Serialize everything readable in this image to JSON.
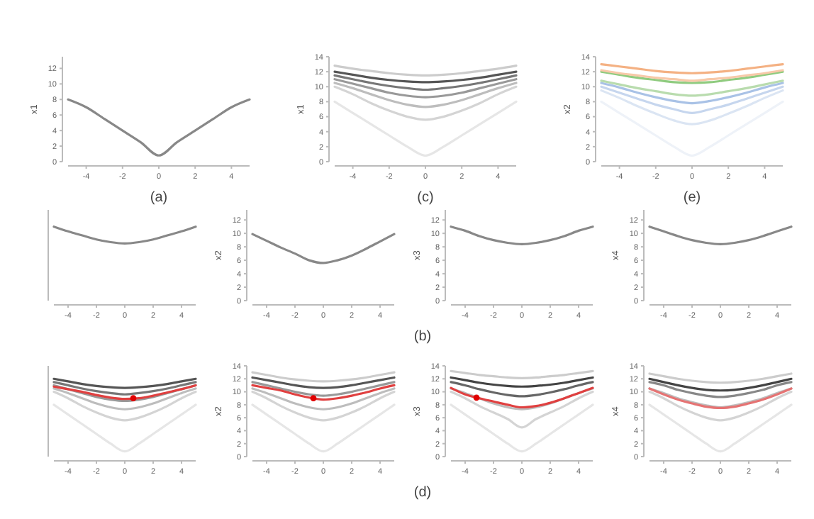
{
  "chart_data": [
    {
      "type": "line",
      "ylabel": "x1",
      "annotations": [
        "(a)"
      ],
      "x": [
        -5,
        -4,
        -3,
        -2,
        -1,
        0,
        1,
        2,
        3,
        4,
        5
      ],
      "xlim": [
        -5,
        5
      ],
      "xticks": [
        -4,
        -2,
        0,
        2,
        4
      ],
      "ylim": [
        0,
        13.5
      ],
      "yticks": [
        0,
        2,
        4,
        6,
        8,
        10,
        12
      ],
      "series": [
        {
          "color": "#888888",
          "values": [
            8,
            7,
            5.5,
            4,
            2.5,
            0.8,
            2.5,
            4,
            5.5,
            7,
            8
          ]
        }
      ]
    },
    {
      "type": "line",
      "ylabel": "x1",
      "annotations": [
        "(c)"
      ],
      "x": [
        -5,
        -4,
        -3,
        -2,
        -1,
        0,
        1,
        2,
        3,
        4,
        5
      ],
      "xlim": [
        -5,
        5
      ],
      "xticks": [
        -4,
        -2,
        0,
        2,
        4
      ],
      "ylim": [
        0,
        14
      ],
      "yticks": [
        0,
        2,
        4,
        6,
        8,
        10,
        12,
        14
      ],
      "series": [
        {
          "color": "#e6e6e6",
          "values": [
            8,
            6.5,
            5,
            3.5,
            2,
            0.8,
            2,
            3.5,
            5,
            6.5,
            8
          ]
        },
        {
          "color": "#d4d4d4",
          "values": [
            10,
            9,
            7.8,
            6.8,
            6,
            5.6,
            6,
            6.8,
            7.8,
            9,
            10
          ]
        },
        {
          "color": "#bdbdbd",
          "values": [
            10.5,
            9.8,
            9,
            8.2,
            7.6,
            7.3,
            7.6,
            8.2,
            9,
            9.8,
            10.5
          ]
        },
        {
          "color": "#999999",
          "values": [
            11,
            10.4,
            9.8,
            9.2,
            8.8,
            8.6,
            8.8,
            9.2,
            9.8,
            10.4,
            11
          ]
        },
        {
          "color": "#777777",
          "values": [
            11.5,
            11,
            10.5,
            10.1,
            9.8,
            9.6,
            9.8,
            10.1,
            10.5,
            11,
            11.5
          ]
        },
        {
          "color": "#555555",
          "values": [
            12,
            11.6,
            11.2,
            10.9,
            10.7,
            10.6,
            10.7,
            10.9,
            11.2,
            11.6,
            12
          ]
        },
        {
          "color": "#cccccc",
          "values": [
            12.8,
            12.4,
            12.1,
            11.8,
            11.6,
            11.5,
            11.6,
            11.8,
            12.1,
            12.4,
            12.8
          ]
        }
      ]
    },
    {
      "type": "line",
      "ylabel": "x2",
      "annotations": [
        "(e)"
      ],
      "x": [
        -5,
        -4,
        -3,
        -2,
        -1,
        0,
        1,
        2,
        3,
        4,
        5
      ],
      "xlim": [
        -5,
        5
      ],
      "xticks": [
        -4,
        -2,
        0,
        2,
        4
      ],
      "ylim": [
        0,
        14
      ],
      "yticks": [
        0,
        2,
        4,
        6,
        8,
        10,
        12,
        14
      ],
      "series": [
        {
          "color": "#eef2f8",
          "values": [
            8,
            6.5,
            5,
            3.5,
            2,
            0.8,
            2,
            3.5,
            5,
            6.5,
            8
          ]
        },
        {
          "color": "#dbe5f3",
          "values": [
            9.5,
            8.5,
            7.4,
            6.4,
            5.5,
            5,
            5.5,
            6.4,
            7.4,
            8.5,
            9.5
          ]
        },
        {
          "color": "#c6d6ee",
          "values": [
            10,
            9.2,
            8.4,
            7.6,
            7,
            6.5,
            7,
            7.6,
            8.4,
            9.2,
            10
          ]
        },
        {
          "color": "#a9c2e6",
          "values": [
            10.5,
            9.9,
            9.2,
            8.6,
            8.1,
            7.8,
            8.1,
            8.6,
            9.2,
            9.9,
            10.5
          ]
        },
        {
          "color": "#b9dcae",
          "values": [
            10.8,
            10.3,
            9.8,
            9.4,
            9,
            8.8,
            9,
            9.4,
            9.8,
            10.3,
            10.8
          ]
        },
        {
          "color": "#8fcb7f",
          "values": [
            12,
            11.6,
            11.2,
            10.9,
            10.6,
            10.5,
            10.6,
            10.9,
            11.2,
            11.6,
            12
          ]
        },
        {
          "color": "#f7c9a9",
          "values": [
            12.2,
            11.8,
            11.5,
            11.2,
            11,
            10.8,
            11,
            11.2,
            11.5,
            11.8,
            12.2
          ]
        },
        {
          "color": "#f4b183",
          "values": [
            13,
            12.7,
            12.4,
            12.1,
            11.9,
            11.8,
            11.9,
            12.1,
            12.4,
            12.7,
            13
          ]
        }
      ]
    },
    {
      "type": "line",
      "tick_labels": "x",
      "x": [
        -5,
        -4,
        -3,
        -2,
        -1,
        0,
        1,
        2,
        3,
        4,
        5
      ],
      "xlim": [
        -5,
        5
      ],
      "xticks": [
        -4,
        -2,
        0,
        2,
        4
      ],
      "ylim": [
        0,
        13.5
      ],
      "series": [
        {
          "color": "#888888",
          "values": [
            11,
            10.3,
            9.7,
            9.1,
            8.7,
            8.5,
            8.7,
            9.1,
            9.7,
            10.3,
            11
          ]
        }
      ]
    },
    {
      "type": "line",
      "ylabel": "x2",
      "annotations": [
        "(b)"
      ],
      "x": [
        -5,
        -4,
        -3,
        -2,
        -1,
        0,
        1,
        2,
        3,
        4,
        5
      ],
      "xlim": [
        -5,
        5
      ],
      "xticks": [
        -4,
        -2,
        0,
        2,
        4
      ],
      "ylim": [
        0,
        13.5
      ],
      "yticks": [
        0,
        2,
        4,
        6,
        8,
        10,
        12
      ],
      "series": [
        {
          "color": "#888888",
          "values": [
            9.9,
            8.9,
            7.9,
            7,
            6,
            5.6,
            6,
            6.7,
            7.7,
            8.8,
            9.9
          ]
        }
      ]
    },
    {
      "type": "line",
      "ylabel": "x3",
      "x": [
        -5,
        -4,
        -3,
        -2,
        -1,
        0,
        1,
        2,
        3,
        4,
        5
      ],
      "xlim": [
        -5,
        5
      ],
      "xticks": [
        -4,
        -2,
        0,
        2,
        4
      ],
      "ylim": [
        0,
        13.5
      ],
      "yticks": [
        0,
        2,
        4,
        6,
        8,
        10,
        12
      ],
      "series": [
        {
          "color": "#888888",
          "values": [
            11,
            10.4,
            9.6,
            9,
            8.6,
            8.4,
            8.6,
            9,
            9.6,
            10.4,
            11
          ]
        }
      ]
    },
    {
      "type": "line",
      "ylabel": "x4",
      "x": [
        -5,
        -4,
        -3,
        -2,
        -1,
        0,
        1,
        2,
        3,
        4,
        5
      ],
      "xlim": [
        -5,
        5
      ],
      "xticks": [
        -4,
        -2,
        0,
        2,
        4
      ],
      "ylim": [
        0,
        13.5
      ],
      "yticks": [
        0,
        2,
        4,
        6,
        8,
        10,
        12
      ],
      "series": [
        {
          "color": "#888888",
          "values": [
            11,
            10.3,
            9.6,
            9,
            8.6,
            8.4,
            8.6,
            9,
            9.6,
            10.3,
            11
          ]
        }
      ]
    },
    {
      "type": "line",
      "tick_labels": "x",
      "x": [
        -5,
        -4,
        -3,
        -2,
        -1,
        0,
        1,
        2,
        3,
        4,
        5
      ],
      "xlim": [
        -5,
        5
      ],
      "xticks": [
        -4,
        -2,
        0,
        2,
        4
      ],
      "ylim": [
        0,
        14
      ],
      "series": [
        {
          "color": "#e6e6e6",
          "values": [
            8,
            6.5,
            5,
            3.5,
            2,
            0.8,
            2,
            3.5,
            5,
            6.5,
            8
          ]
        },
        {
          "color": "#d4d4d4",
          "values": [
            10,
            9,
            7.8,
            6.8,
            6,
            5.6,
            6,
            6.8,
            7.8,
            9,
            10
          ]
        },
        {
          "color": "#bdbdbd",
          "values": [
            10.5,
            9.8,
            9,
            8.2,
            7.6,
            7.3,
            7.6,
            8.2,
            9,
            9.8,
            10.5
          ]
        },
        {
          "color": "#999999",
          "values": [
            11,
            10.4,
            9.8,
            9.2,
            8.8,
            8.6,
            8.8,
            9.2,
            9.8,
            10.4,
            11
          ]
        },
        {
          "color": "#777777",
          "values": [
            11.5,
            11,
            10.5,
            10.1,
            9.8,
            9.6,
            9.8,
            10.1,
            10.5,
            11,
            11.5
          ]
        },
        {
          "color": "#555555",
          "values": [
            12,
            11.6,
            11.2,
            10.9,
            10.7,
            10.6,
            10.7,
            10.9,
            11.2,
            11.6,
            12
          ]
        },
        {
          "color": "#e04040",
          "values": [
            10.8,
            10.4,
            10,
            9.5,
            9.1,
            8.9,
            9,
            9.4,
            9.9,
            10.4,
            11
          ]
        },
        {
          "type": "scatter",
          "color": "#e00000",
          "x": [
            0.6
          ],
          "values": [
            9
          ]
        }
      ]
    },
    {
      "type": "line",
      "ylabel": "x2",
      "annotations": [
        "(d)"
      ],
      "x": [
        -5,
        -4,
        -3,
        -2,
        -1,
        0,
        1,
        2,
        3,
        4,
        5
      ],
      "xlim": [
        -5,
        5
      ],
      "xticks": [
        -4,
        -2,
        0,
        2,
        4
      ],
      "ylim": [
        0,
        14
      ],
      "yticks": [
        0,
        2,
        4,
        6,
        8,
        10,
        12,
        14
      ],
      "series": [
        {
          "color": "#e6e6e6",
          "values": [
            8,
            6.5,
            5,
            3.5,
            2,
            0.8,
            2,
            3.5,
            5,
            6.5,
            8
          ]
        },
        {
          "color": "#d4d4d4",
          "values": [
            10,
            9,
            7.8,
            6.8,
            6,
            5.6,
            6,
            6.8,
            7.8,
            9,
            10
          ]
        },
        {
          "color": "#bdbdbd",
          "values": [
            10.5,
            9.8,
            9,
            8.2,
            7.6,
            7.3,
            7.6,
            8.2,
            9,
            9.8,
            10.5
          ]
        },
        {
          "color": "#999999",
          "values": [
            11.5,
            11,
            10.5,
            10,
            9.6,
            9.4,
            9.6,
            10,
            10.5,
            11,
            11.5
          ]
        },
        {
          "color": "#555555",
          "values": [
            12.2,
            11.8,
            11.4,
            11,
            10.7,
            10.6,
            10.7,
            11,
            11.4,
            11.8,
            12.2
          ]
        },
        {
          "color": "#cccccc",
          "values": [
            13,
            12.6,
            12.2,
            11.9,
            11.7,
            11.6,
            11.7,
            11.9,
            12.2,
            12.6,
            13
          ]
        },
        {
          "color": "#e04040",
          "values": [
            11,
            10.6,
            10.2,
            9.6,
            9.1,
            8.8,
            9,
            9.4,
            9.9,
            10.5,
            11
          ]
        },
        {
          "type": "scatter",
          "color": "#e00000",
          "x": [
            -0.7
          ],
          "values": [
            9
          ]
        }
      ]
    },
    {
      "type": "line",
      "ylabel": "x3",
      "x": [
        -5,
        -4,
        -3,
        -2,
        -1,
        0,
        1,
        2,
        3,
        4,
        5
      ],
      "xlim": [
        -5,
        5
      ],
      "xticks": [
        -4,
        -2,
        0,
        2,
        4
      ],
      "ylim": [
        0,
        14
      ],
      "yticks": [
        0,
        2,
        4,
        6,
        8,
        10,
        12,
        14
      ],
      "series": [
        {
          "color": "#e6e6e6",
          "values": [
            8,
            6.5,
            5,
            3.5,
            2,
            0.8,
            2,
            3.5,
            5,
            6.5,
            8
          ]
        },
        {
          "color": "#d4d4d4",
          "values": [
            10,
            9,
            7.8,
            6.8,
            5.8,
            4.5,
            5.8,
            6.8,
            7.8,
            9,
            10
          ]
        },
        {
          "color": "#bdbdbd",
          "values": [
            10.5,
            9.8,
            9,
            8.2,
            7.6,
            7.3,
            7.6,
            8.2,
            9,
            9.8,
            10.5
          ]
        },
        {
          "color": "#666666",
          "values": [
            11.5,
            11,
            10.4,
            9.9,
            9.5,
            9.3,
            9.5,
            9.9,
            10.4,
            11,
            11.5
          ]
        },
        {
          "color": "#444444",
          "values": [
            12.2,
            11.8,
            11.4,
            11.1,
            10.9,
            10.8,
            10.9,
            11.1,
            11.4,
            11.8,
            12.2
          ]
        },
        {
          "color": "#cccccc",
          "values": [
            13.2,
            12.9,
            12.6,
            12.4,
            12.2,
            12.1,
            12.2,
            12.4,
            12.6,
            12.9,
            13.2
          ]
        },
        {
          "color": "#e04040",
          "values": [
            10.6,
            9.6,
            9,
            8.5,
            8,
            7.6,
            7.8,
            8.3,
            9,
            9.8,
            10.6
          ]
        },
        {
          "type": "scatter",
          "color": "#e00000",
          "x": [
            -3.2
          ],
          "values": [
            9.1
          ]
        }
      ]
    },
    {
      "type": "line",
      "ylabel": "x4",
      "x": [
        -5,
        -4,
        -3,
        -2,
        -1,
        0,
        1,
        2,
        3,
        4,
        5
      ],
      "xlim": [
        -5,
        5
      ],
      "xticks": [
        -4,
        -2,
        0,
        2,
        4
      ],
      "ylim": [
        0,
        14
      ],
      "yticks": [
        0,
        2,
        4,
        6,
        8,
        10,
        12,
        14
      ],
      "series": [
        {
          "color": "#e6e6e6",
          "values": [
            8,
            6.5,
            5,
            3.5,
            2,
            0.8,
            2,
            3.5,
            5,
            6.5,
            8
          ]
        },
        {
          "color": "#d4d4d4",
          "values": [
            10,
            9,
            7.8,
            6.8,
            6,
            5.6,
            6,
            6.8,
            7.8,
            9,
            10
          ]
        },
        {
          "color": "#bdbdbd",
          "values": [
            10.5,
            9.8,
            9,
            8.4,
            7.9,
            7.6,
            7.9,
            8.4,
            9,
            9.8,
            10.5
          ]
        },
        {
          "color": "#888888",
          "values": [
            11.5,
            11,
            10.3,
            9.8,
            9.4,
            9.2,
            9.4,
            9.8,
            10.3,
            11,
            11.5
          ]
        },
        {
          "color": "#444444",
          "values": [
            12,
            11.5,
            11,
            10.6,
            10.3,
            10.2,
            10.3,
            10.6,
            11,
            11.5,
            12
          ]
        },
        {
          "color": "#cccccc",
          "values": [
            12.8,
            12.4,
            12,
            11.7,
            11.5,
            11.4,
            11.5,
            11.7,
            12,
            12.4,
            12.8
          ]
        },
        {
          "color": "#e57373",
          "values": [
            10.5,
            9.6,
            8.8,
            8.2,
            7.7,
            7.5,
            7.7,
            8.2,
            8.8,
            9.6,
            10.5
          ]
        }
      ]
    }
  ]
}
